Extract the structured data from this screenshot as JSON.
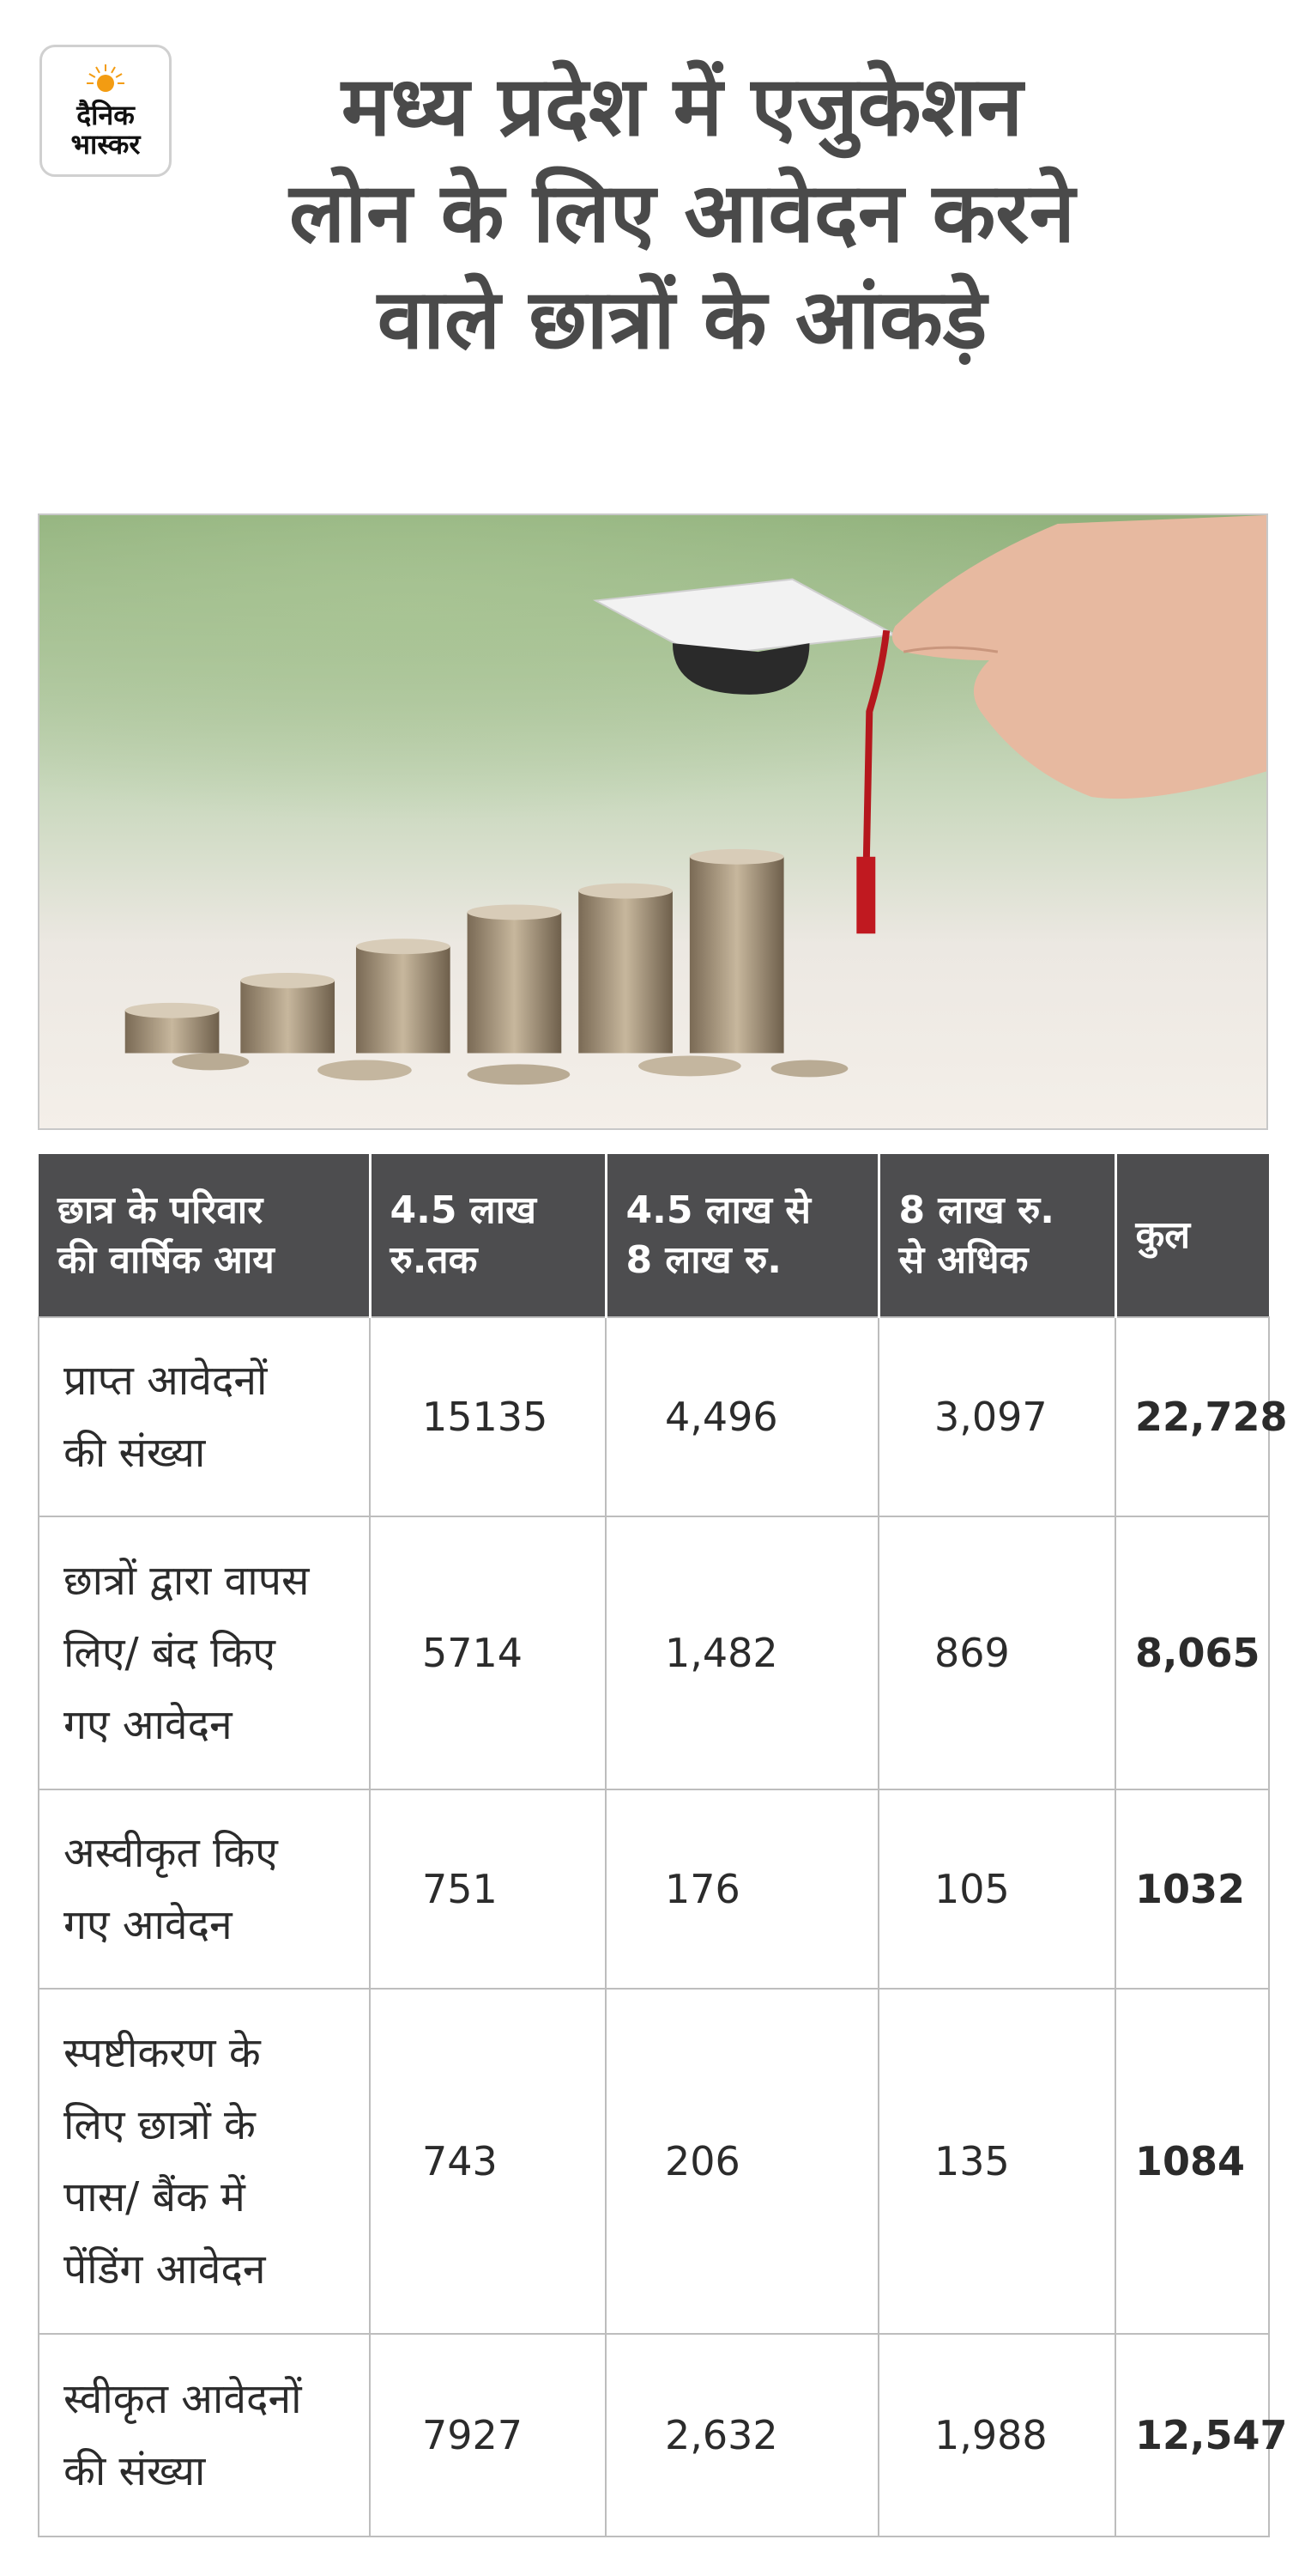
{
  "brand": {
    "line1": "दैनिक",
    "line2": "भास्कर",
    "sun_color": "#f39c12"
  },
  "title": {
    "line1": "मध्य प्रदेश में एजुकेशन",
    "line2": "लोन के लिए आवेदन करने",
    "line3": "वाले छात्रों के आंकड़े"
  },
  "table": {
    "headers": [
      [
        "छात्र के परिवार",
        "की वार्षिक आय"
      ],
      [
        "4.5 लाख",
        "रु.तक"
      ],
      [
        "4.5 लाख से",
        "8 लाख रु."
      ],
      [
        "8 लाख रु.",
        "से अधिक"
      ],
      [
        "कुल"
      ]
    ],
    "rows": [
      {
        "label": [
          "प्राप्त आवेदनों",
          "की संख्या"
        ],
        "c1": "15135",
        "c2": "4,496",
        "c3": "3,097",
        "total": "22,728"
      },
      {
        "label": [
          "छात्रों द्वारा वापस",
          "लिए/ बंद किए",
          "गए आवेदन"
        ],
        "c1": "5714",
        "c2": "1,482",
        "c3": "869",
        "total": "8,065"
      },
      {
        "label": [
          "अस्वीकृत किए",
          "गए आवेदन"
        ],
        "c1": "751",
        "c2": "176",
        "c3": "105",
        "total": "1032"
      },
      {
        "label": [
          "स्पष्टीकरण के",
          "लिए छात्रों के",
          "पास/ बैंक में",
          "पेंडिंग आवेदन"
        ],
        "c1": "743",
        "c2": "206",
        "c3": "135",
        "total": "1084"
      },
      {
        "label": [
          "स्वीकृत आवेदनों",
          "की संख्या"
        ],
        "c1": "7927",
        "c2": "2,632",
        "c3": "1,988",
        "total": "12,547"
      }
    ]
  }
}
